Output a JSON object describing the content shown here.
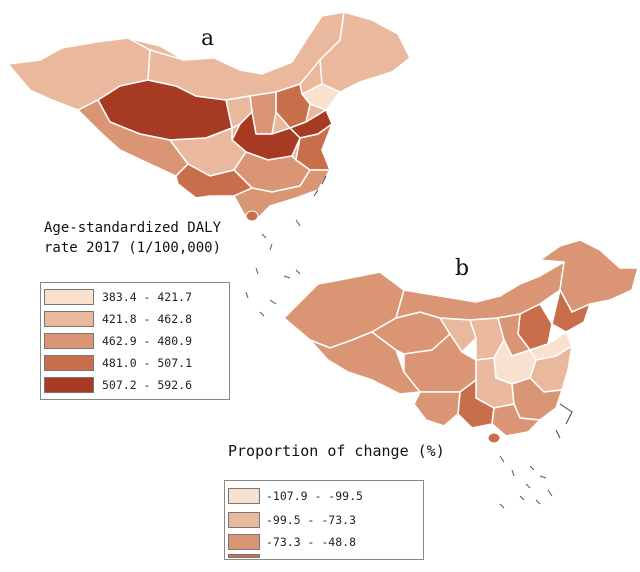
{
  "panel_a": {
    "letter": "a",
    "legend_title_line1": "Age-standardized DALY",
    "legend_title_line2": "rate 2017 (1/100,000)",
    "classes": [
      {
        "label": "383.4 - 421.7",
        "color": "#f8e1cf"
      },
      {
        "label": "421.8 - 462.8",
        "color": "#eab89c"
      },
      {
        "label": "462.9 - 480.9",
        "color": "#d99574"
      },
      {
        "label": "481.0 - 507.1",
        "color": "#c96e4b"
      },
      {
        "label": "507.2 - 592.6",
        "color": "#a63a22"
      }
    ]
  },
  "panel_b": {
    "letter": "b",
    "legend_title": "Proportion of change (%)",
    "classes": [
      {
        "label": "-107.9 - -99.5",
        "color": "#f8e1cf"
      },
      {
        "label": "-99.5 - -73.3",
        "color": "#eab89c"
      },
      {
        "label": "-73.3 - -48.8",
        "color": "#d99574"
      },
      {
        "label": "",
        "color": "#c96e4b"
      }
    ]
  },
  "colors": {
    "background": "#ffffff",
    "border": "#ffffff",
    "coast": "#444444"
  }
}
